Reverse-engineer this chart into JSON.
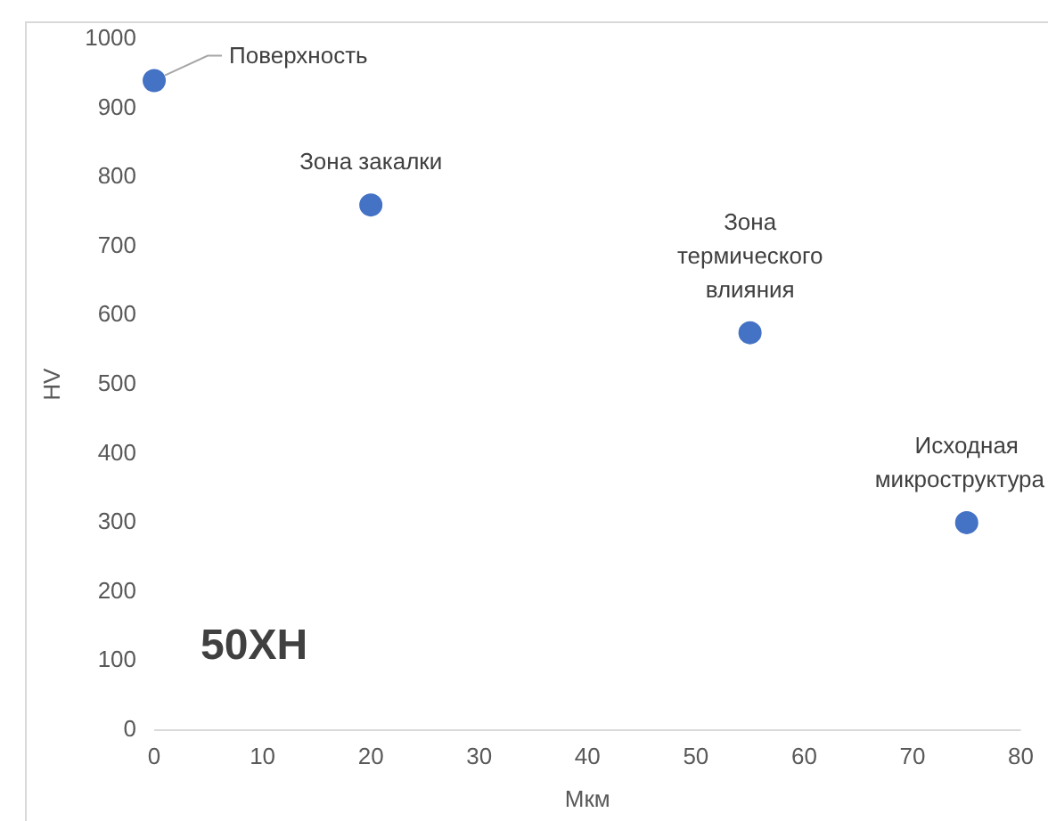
{
  "chart_data": {
    "type": "scatter",
    "xlabel": "Мкм",
    "ylabel": "HV",
    "x": [
      0,
      20,
      55,
      75
    ],
    "series": [
      {
        "color": "#4472c4",
        "values": [
          940,
          760,
          575,
          300
        ]
      }
    ],
    "xlim": [
      0,
      80
    ],
    "xticks": [
      0,
      10,
      20,
      30,
      40,
      50,
      60,
      70,
      80
    ],
    "ylim": [
      0,
      1000
    ],
    "yticks": [
      0,
      100,
      200,
      300,
      400,
      500,
      600,
      700,
      800,
      900,
      1000
    ],
    "grid": false,
    "legend": false,
    "marker": "circle",
    "annotations": [
      {
        "text": "Поверхность",
        "x": 0,
        "y": 940
      },
      {
        "text": "Зона закалки",
        "x": 20,
        "y": 760
      },
      {
        "text": "Зона\nтермического\nвлияния",
        "x": 55,
        "y": 575
      },
      {
        "text": "Исходная\nмикроструктура",
        "x": 75,
        "y": 300
      },
      "50ХН"
    ]
  }
}
